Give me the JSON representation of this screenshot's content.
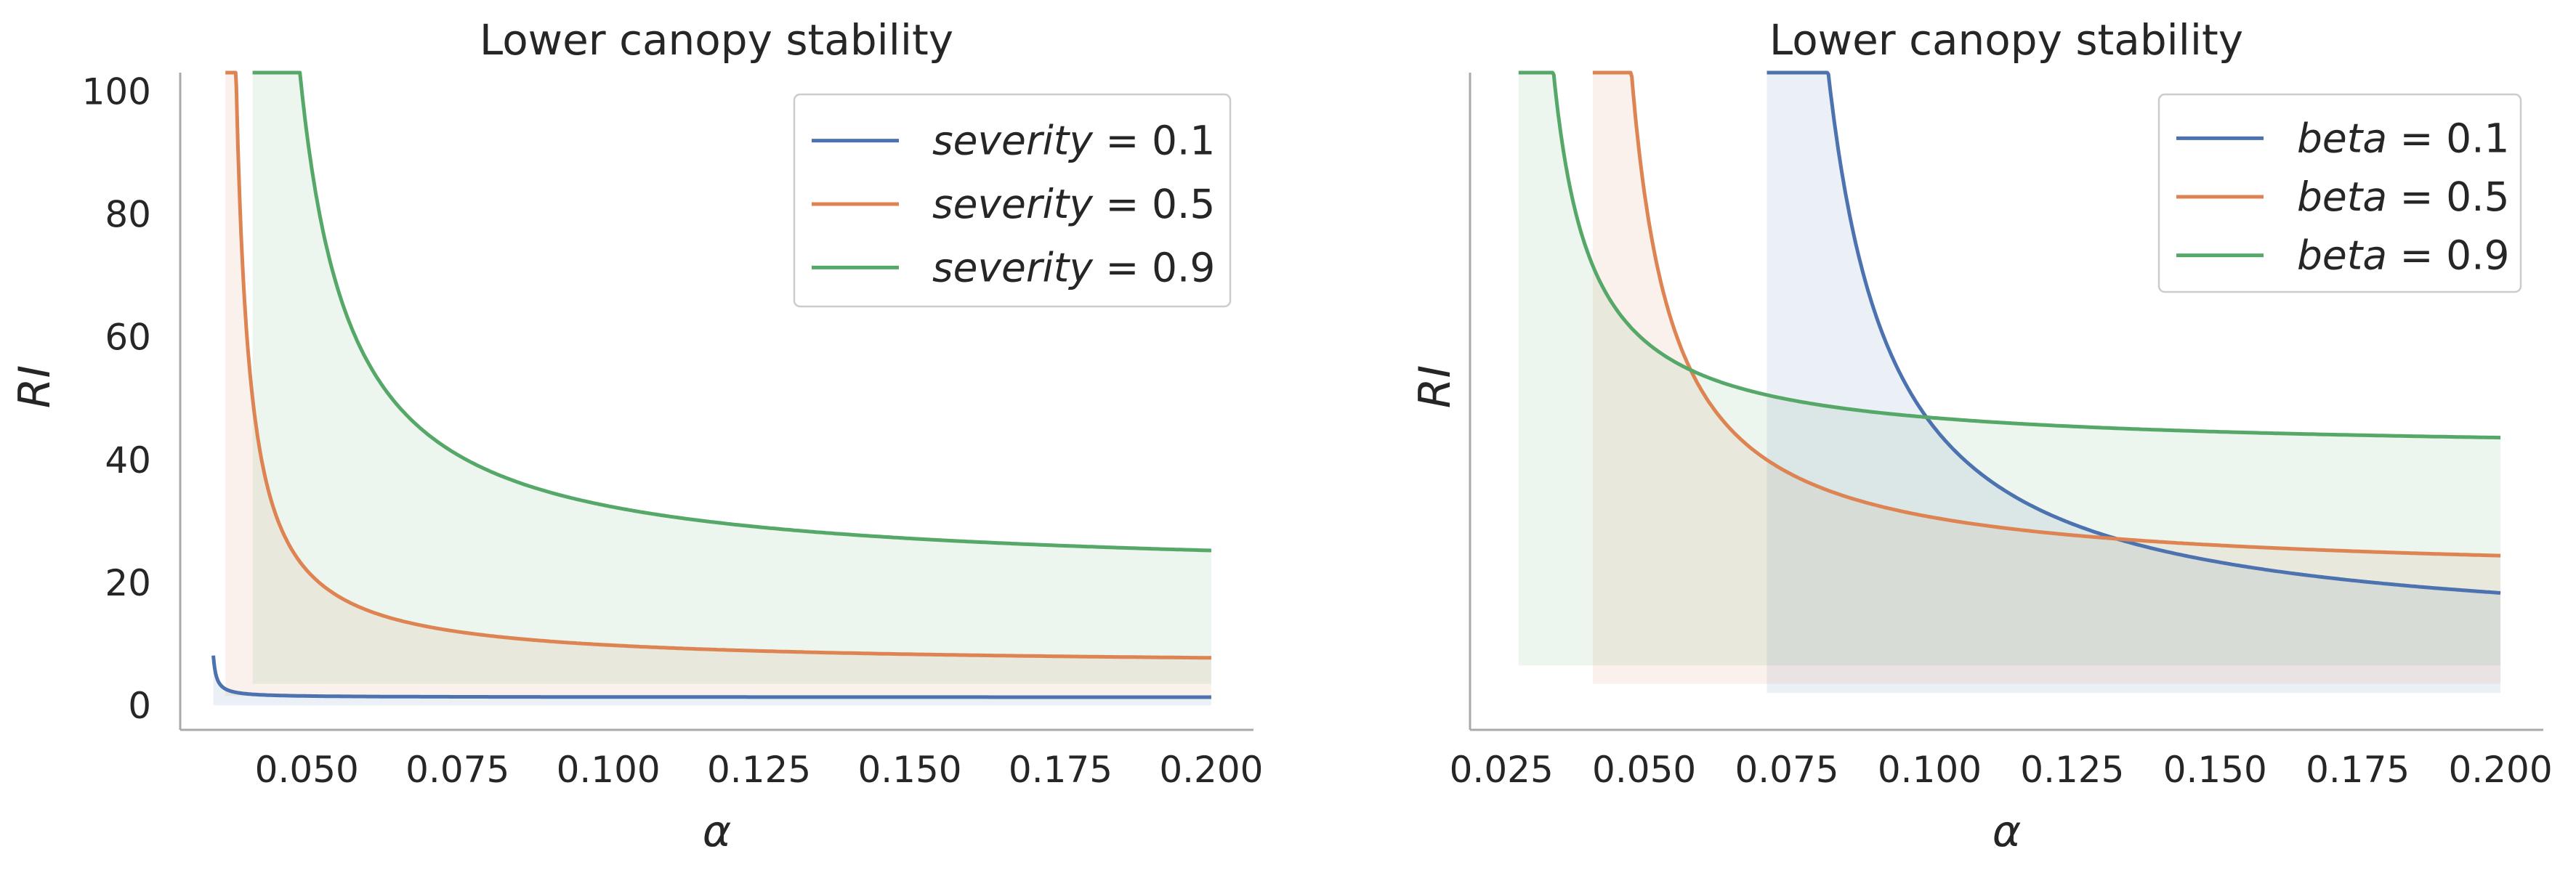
{
  "chart_data": [
    {
      "type": "line",
      "title": "Lower canopy stability",
      "xlabel": "α",
      "ylabel": "RI",
      "xlim": [
        0.029,
        0.207
      ],
      "ylim": [
        -4,
        103
      ],
      "xticks": [
        0.05,
        0.075,
        0.1,
        0.125,
        0.15,
        0.175,
        0.2
      ],
      "xtick_labels": [
        "0.050",
        "0.075",
        "0.100",
        "0.125",
        "0.150",
        "0.175",
        "0.200"
      ],
      "yticks": [
        0,
        20,
        40,
        60,
        80,
        100
      ],
      "ytick_labels": [
        "0",
        "20",
        "40",
        "60",
        "80",
        "100"
      ],
      "show_yticks": true,
      "grid": false,
      "legend": {
        "position": "top-right",
        "param": "severity",
        "eq": " = "
      },
      "series": [
        {
          "name": "severity = 0.1",
          "value": "0.1",
          "color": "#4c72b0",
          "x0": 0.0345,
          "xmax": 0.2,
          "B": 1.3,
          "A": 0.0034,
          "fill_base": 0.0
        },
        {
          "name": "severity = 0.5",
          "value": "0.5",
          "color": "#dd8452",
          "x0": 0.0365,
          "xmax": 0.2,
          "B": 6.4,
          "A": 0.218,
          "fill_base": 1.5
        },
        {
          "name": "severity = 0.9",
          "value": "0.9",
          "color": "#55a868",
          "x0": 0.041,
          "xmax": 0.2,
          "B": 20.9,
          "A": 0.686,
          "fill_base": 3.5
        }
      ]
    },
    {
      "type": "line",
      "title": "Lower canopy stability",
      "xlabel": "α",
      "ylabel": "RI",
      "xlim": [
        0.0195,
        0.2075
      ],
      "ylim": [
        -4,
        103
      ],
      "xticks": [
        0.025,
        0.05,
        0.075,
        0.1,
        0.125,
        0.15,
        0.175,
        0.2
      ],
      "xtick_labels": [
        "0.025",
        "0.050",
        "0.075",
        "0.100",
        "0.125",
        "0.150",
        "0.175",
        "0.200"
      ],
      "yticks": [],
      "ytick_labels": [],
      "show_yticks": false,
      "grid": false,
      "legend": {
        "position": "top-right",
        "param": "beta",
        "eq": " = "
      },
      "series": [
        {
          "name": "beta = 0.1",
          "value": "0.1",
          "color": "#4c72b0",
          "x0": 0.0715,
          "xmax": 0.2,
          "B": 10.2,
          "A": 1.044,
          "fill_base": 2.0
        },
        {
          "name": "beta = 0.5",
          "value": "0.5",
          "color": "#dd8452",
          "x0": 0.041,
          "xmax": 0.2,
          "B": 20.6,
          "A": 0.6,
          "fill_base": 3.5
        },
        {
          "name": "beta = 0.9",
          "value": "0.9",
          "color": "#55a868",
          "x0": 0.028,
          "xmax": 0.2,
          "B": 41.2,
          "A": 0.41,
          "fill_base": 6.5
        }
      ]
    }
  ]
}
